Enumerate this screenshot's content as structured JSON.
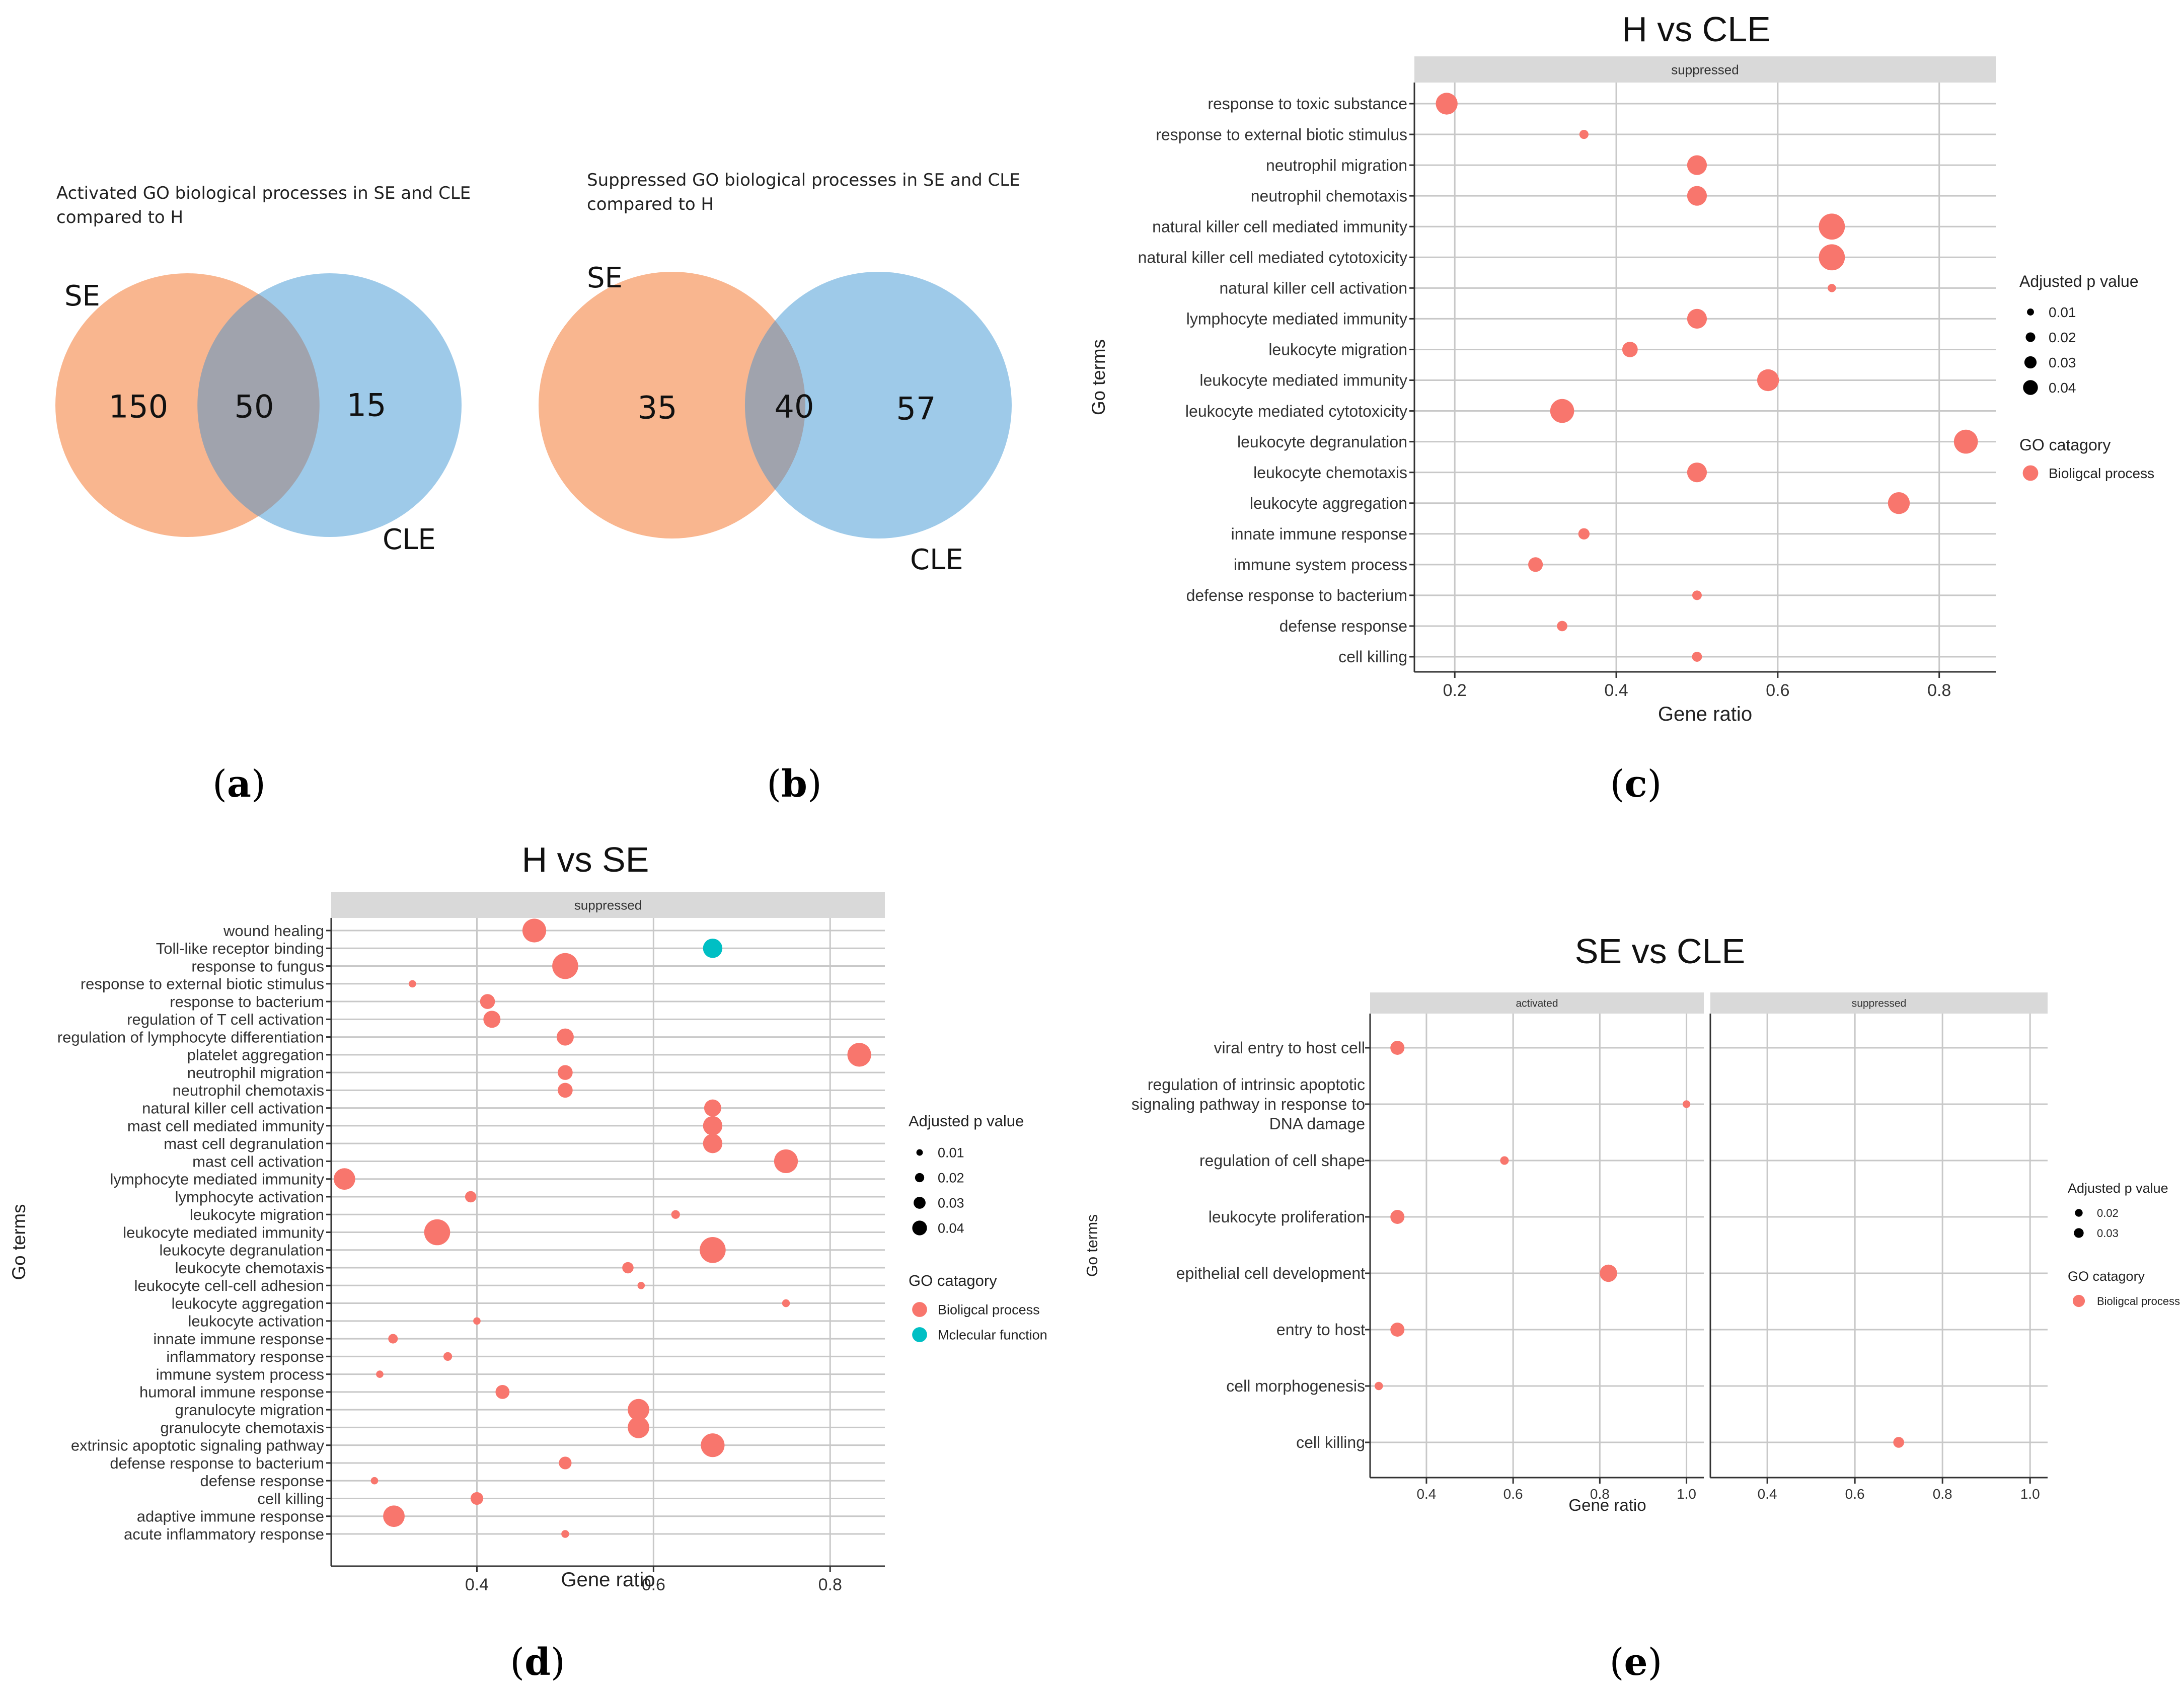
{
  "venn_a": {
    "title_line1": "Activated GO biological processes in SE and CLE",
    "title_line2": "compared to H",
    "left_label": "SE",
    "right_label": "CLE",
    "left_only": "150",
    "overlap": "50",
    "right_only": "15",
    "colors": {
      "left": "#f9b68f",
      "right": "#9ecae9",
      "overlap": "#a0a3ad"
    }
  },
  "venn_b": {
    "title_line1": "Suppressed GO biological processes in SE and CLE",
    "title_line2": "compared to H",
    "left_label": "SE",
    "right_label": "CLE",
    "left_only": "35",
    "overlap": "40",
    "right_only": "57",
    "colors": {
      "left": "#f9b68f",
      "right": "#9ecae9",
      "overlap": "#a0a3ad"
    }
  },
  "panel_labels": {
    "a": "a",
    "b": "b",
    "c": "c",
    "d": "d",
    "e": "e"
  },
  "chart_data": [
    {
      "id": "c",
      "type": "scatter",
      "title": "H vs CLE",
      "facets": [
        "suppressed"
      ],
      "xlabel": "Gene ratio",
      "ylabel": "Go terms",
      "xlim": [
        0.15,
        0.87
      ],
      "xticks": [
        0.2,
        0.4,
        0.6,
        0.8
      ],
      "xtick_labels": [
        "0.2",
        "0.4",
        "0.6",
        "0.8"
      ],
      "terms": [
        "response to toxic substance",
        "response to external biotic stimulus",
        "neutrophil migration",
        "neutrophil chemotaxis",
        "natural killer cell mediated immunity",
        "natural killer cell mediated cytotoxicity",
        "natural killer cell activation",
        "lymphocyte mediated immunity",
        "leukocyte migration",
        "leukocyte mediated immunity",
        "leukocyte mediated cytotoxicity",
        "leukocyte degranulation",
        "leukocyte chemotaxis",
        "leukocyte aggregation",
        "innate immune response",
        "immune system process",
        "defense response to bacterium",
        "defense response",
        "cell killing"
      ],
      "points": [
        {
          "facet": 0,
          "term": 0,
          "x": 0.19,
          "p": 0.035,
          "cat": 0
        },
        {
          "facet": 0,
          "term": 1,
          "x": 0.36,
          "p": 0.005,
          "cat": 0
        },
        {
          "facet": 0,
          "term": 2,
          "x": 0.5,
          "p": 0.03,
          "cat": 0
        },
        {
          "facet": 0,
          "term": 3,
          "x": 0.5,
          "p": 0.03,
          "cat": 0
        },
        {
          "facet": 0,
          "term": 4,
          "x": 0.667,
          "p": 0.045,
          "cat": 0
        },
        {
          "facet": 0,
          "term": 5,
          "x": 0.667,
          "p": 0.045,
          "cat": 0
        },
        {
          "facet": 0,
          "term": 6,
          "x": 0.667,
          "p": 0.003,
          "cat": 0
        },
        {
          "facet": 0,
          "term": 7,
          "x": 0.5,
          "p": 0.03,
          "cat": 0
        },
        {
          "facet": 0,
          "term": 8,
          "x": 0.417,
          "p": 0.02,
          "cat": 0
        },
        {
          "facet": 0,
          "term": 9,
          "x": 0.588,
          "p": 0.035,
          "cat": 0
        },
        {
          "facet": 0,
          "term": 10,
          "x": 0.333,
          "p": 0.04,
          "cat": 0
        },
        {
          "facet": 0,
          "term": 11,
          "x": 0.833,
          "p": 0.04,
          "cat": 0
        },
        {
          "facet": 0,
          "term": 12,
          "x": 0.5,
          "p": 0.03,
          "cat": 0
        },
        {
          "facet": 0,
          "term": 13,
          "x": 0.75,
          "p": 0.035,
          "cat": 0
        },
        {
          "facet": 0,
          "term": 14,
          "x": 0.36,
          "p": 0.01,
          "cat": 0
        },
        {
          "facet": 0,
          "term": 15,
          "x": 0.3,
          "p": 0.018,
          "cat": 0
        },
        {
          "facet": 0,
          "term": 16,
          "x": 0.5,
          "p": 0.006,
          "cat": 0
        },
        {
          "facet": 0,
          "term": 17,
          "x": 0.333,
          "p": 0.008,
          "cat": 0
        },
        {
          "facet": 0,
          "term": 18,
          "x": 0.5,
          "p": 0.007,
          "cat": 0
        }
      ],
      "size_legend": {
        "title": "Adjusted p value",
        "values": [
          0.01,
          0.02,
          0.03,
          0.04
        ],
        "labels": [
          "0.01",
          "0.02",
          "0.03",
          "0.04"
        ]
      },
      "color_legend": {
        "title": "GO catagory",
        "entries": [
          "Bioligcal process"
        ],
        "colors": [
          "#f8766d"
        ]
      }
    },
    {
      "id": "d",
      "type": "scatter",
      "title": "H vs SE",
      "facets": [
        "suppressed"
      ],
      "xlabel": "Gene ratio",
      "ylabel": "Go terms",
      "xlim": [
        0.235,
        0.862
      ],
      "xticks": [
        0.4,
        0.6,
        0.8
      ],
      "xtick_labels": [
        "0.4",
        "0.6",
        "0.8"
      ],
      "terms": [
        "wound healing",
        "Toll-like receptor binding",
        "response to fungus",
        "response to external biotic stimulus",
        "response to bacterium",
        "regulation of T cell activation",
        "regulation of lymphocyte differentiation",
        "platelet aggregation",
        "neutrophil migration",
        "neutrophil chemotaxis",
        "natural killer cell activation",
        "mast cell mediated immunity",
        "mast cell degranulation",
        "mast cell activation",
        "lymphocyte mediated immunity",
        "lymphocyte activation",
        "leukocyte migration",
        "leukocyte mediated immunity",
        "leukocyte degranulation",
        "leukocyte chemotaxis",
        "leukocyte cell-cell adhesion",
        "leukocyte aggregation",
        "leukocyte activation",
        "innate immune response",
        "inflammatory response",
        "immune system process",
        "humoral immune response",
        "granulocyte migration",
        "granulocyte chemotaxis",
        "extrinsic apoptotic signaling pathway",
        "defense response to bacterium",
        "defense response",
        "cell killing",
        "adaptive immune response",
        "acute inflammatory response"
      ],
      "points": [
        {
          "facet": 0,
          "term": 0,
          "x": 0.465,
          "p": 0.04,
          "cat": 0
        },
        {
          "facet": 0,
          "term": 1,
          "x": 0.667,
          "p": 0.03,
          "cat": 1
        },
        {
          "facet": 0,
          "term": 2,
          "x": 0.5,
          "p": 0.045,
          "cat": 0
        },
        {
          "facet": 0,
          "term": 3,
          "x": 0.327,
          "p": 0.003,
          "cat": 0
        },
        {
          "facet": 0,
          "term": 4,
          "x": 0.412,
          "p": 0.02,
          "cat": 0
        },
        {
          "facet": 0,
          "term": 5,
          "x": 0.417,
          "p": 0.025,
          "cat": 0
        },
        {
          "facet": 0,
          "term": 6,
          "x": 0.5,
          "p": 0.025,
          "cat": 0
        },
        {
          "facet": 0,
          "term": 7,
          "x": 0.833,
          "p": 0.04,
          "cat": 0
        },
        {
          "facet": 0,
          "term": 8,
          "x": 0.5,
          "p": 0.02,
          "cat": 0
        },
        {
          "facet": 0,
          "term": 9,
          "x": 0.5,
          "p": 0.02,
          "cat": 0
        },
        {
          "facet": 0,
          "term": 10,
          "x": 0.667,
          "p": 0.025,
          "cat": 0
        },
        {
          "facet": 0,
          "term": 11,
          "x": 0.667,
          "p": 0.03,
          "cat": 0
        },
        {
          "facet": 0,
          "term": 12,
          "x": 0.667,
          "p": 0.03,
          "cat": 0
        },
        {
          "facet": 0,
          "term": 13,
          "x": 0.75,
          "p": 0.04,
          "cat": 0
        },
        {
          "facet": 0,
          "term": 14,
          "x": 0.25,
          "p": 0.035,
          "cat": 0
        },
        {
          "facet": 0,
          "term": 15,
          "x": 0.393,
          "p": 0.012,
          "cat": 0
        },
        {
          "facet": 0,
          "term": 16,
          "x": 0.625,
          "p": 0.006,
          "cat": 0
        },
        {
          "facet": 0,
          "term": 17,
          "x": 0.355,
          "p": 0.045,
          "cat": 0
        },
        {
          "facet": 0,
          "term": 18,
          "x": 0.667,
          "p": 0.045,
          "cat": 0
        },
        {
          "facet": 0,
          "term": 19,
          "x": 0.571,
          "p": 0.012,
          "cat": 0
        },
        {
          "facet": 0,
          "term": 20,
          "x": 0.586,
          "p": 0.003,
          "cat": 0
        },
        {
          "facet": 0,
          "term": 21,
          "x": 0.75,
          "p": 0.004,
          "cat": 0
        },
        {
          "facet": 0,
          "term": 22,
          "x": 0.4,
          "p": 0.003,
          "cat": 0
        },
        {
          "facet": 0,
          "term": 23,
          "x": 0.305,
          "p": 0.008,
          "cat": 0
        },
        {
          "facet": 0,
          "term": 24,
          "x": 0.367,
          "p": 0.006,
          "cat": 0
        },
        {
          "facet": 0,
          "term": 25,
          "x": 0.29,
          "p": 0.003,
          "cat": 0
        },
        {
          "facet": 0,
          "term": 26,
          "x": 0.429,
          "p": 0.018,
          "cat": 0
        },
        {
          "facet": 0,
          "term": 27,
          "x": 0.583,
          "p": 0.035,
          "cat": 0
        },
        {
          "facet": 0,
          "term": 28,
          "x": 0.583,
          "p": 0.035,
          "cat": 0
        },
        {
          "facet": 0,
          "term": 29,
          "x": 0.667,
          "p": 0.04,
          "cat": 0
        },
        {
          "facet": 0,
          "term": 30,
          "x": 0.5,
          "p": 0.015,
          "cat": 0
        },
        {
          "facet": 0,
          "term": 31,
          "x": 0.284,
          "p": 0.003,
          "cat": 0
        },
        {
          "facet": 0,
          "term": 32,
          "x": 0.4,
          "p": 0.015,
          "cat": 0
        },
        {
          "facet": 0,
          "term": 33,
          "x": 0.306,
          "p": 0.035,
          "cat": 0
        },
        {
          "facet": 0,
          "term": 34,
          "x": 0.5,
          "p": 0.004,
          "cat": 0
        }
      ],
      "size_legend": {
        "title": "Adjusted p value",
        "values": [
          0.01,
          0.02,
          0.03,
          0.04
        ],
        "labels": [
          "0.01",
          "0.02",
          "0.03",
          "0.04"
        ]
      },
      "color_legend": {
        "title": "GO catagory",
        "entries": [
          "Bioligcal process",
          "Mclecular function"
        ],
        "colors": [
          "#f8766d",
          "#00bfc4"
        ]
      }
    },
    {
      "id": "e",
      "type": "scatter",
      "title": "SE vs CLE",
      "facets": [
        "activated",
        "suppressed"
      ],
      "xlabel": "Gene ratio",
      "ylabel": "Go terms",
      "xlim": [
        0.27,
        1.04
      ],
      "xticks": [
        0.4,
        0.6,
        0.8,
        1.0
      ],
      "xtick_labels": [
        "0.4",
        "0.6",
        "0.8",
        "1.0"
      ],
      "terms": [
        "viral entry to host cell",
        "regulation of intrinsic apoptotic signaling pathway in response to DNA damage",
        "regulation of cell shape",
        "leukocyte proliferation",
        "epithelial cell development",
        "entry to host",
        "cell morphogenesis",
        "cell killing"
      ],
      "term_lines": [
        [
          "viral entry to host cell"
        ],
        [
          "regulation of intrinsic apoptotic",
          "signaling pathway in response to",
          "DNA damage"
        ],
        [
          "regulation of cell shape"
        ],
        [
          "leukocyte proliferation"
        ],
        [
          "epithelial cell development"
        ],
        [
          "entry to host"
        ],
        [
          "cell morphogenesis"
        ],
        [
          "cell killing"
        ]
      ],
      "points": [
        {
          "facet": 0,
          "term": 0,
          "x": 0.333,
          "p": 0.025,
          "cat": 0
        },
        {
          "facet": 0,
          "term": 1,
          "x": 1.0,
          "p": 0.005,
          "cat": 0
        },
        {
          "facet": 0,
          "term": 2,
          "x": 0.58,
          "p": 0.008,
          "cat": 0
        },
        {
          "facet": 0,
          "term": 3,
          "x": 0.333,
          "p": 0.025,
          "cat": 0
        },
        {
          "facet": 0,
          "term": 4,
          "x": 0.82,
          "p": 0.035,
          "cat": 0
        },
        {
          "facet": 0,
          "term": 5,
          "x": 0.333,
          "p": 0.025,
          "cat": 0
        },
        {
          "facet": 0,
          "term": 6,
          "x": 0.29,
          "p": 0.007,
          "cat": 0
        },
        {
          "facet": 1,
          "term": 7,
          "x": 0.7,
          "p": 0.015,
          "cat": 0
        }
      ],
      "size_legend": {
        "title": "Adjusted p value",
        "values": [
          0.02,
          0.03
        ],
        "labels": [
          "0.02",
          "0.03"
        ]
      },
      "color_legend": {
        "title": "GO catagory",
        "entries": [
          "Bioligcal process"
        ],
        "colors": [
          "#f8766d"
        ]
      }
    }
  ]
}
